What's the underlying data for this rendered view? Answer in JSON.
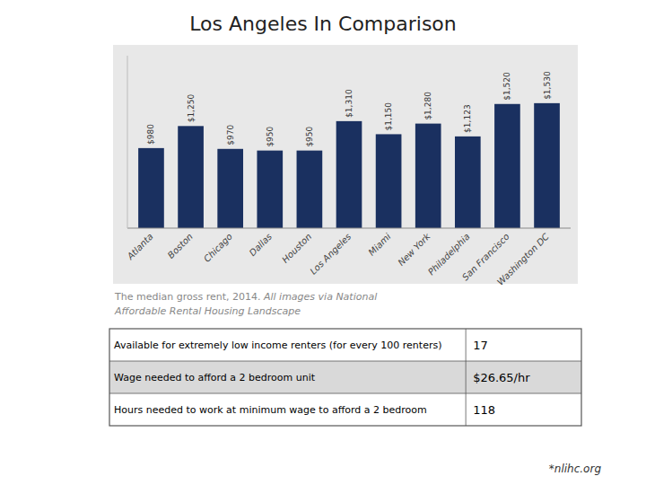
{
  "chart_data": {
    "type": "bar",
    "title": "Los Angeles In Comparison",
    "categories": [
      "Atlanta",
      "Boston",
      "Chicago",
      "Dallas",
      "Houston",
      "Los Angeles",
      "Miami",
      "New York",
      "Philadelphia",
      "San Francisco",
      "Washington DC"
    ],
    "values": [
      980,
      1250,
      970,
      950,
      950,
      1310,
      1150,
      1280,
      1123,
      1520,
      1530
    ],
    "value_labels": [
      "$980",
      "$1,250",
      "$970",
      "$950",
      "$950",
      "$1,310",
      "$1,150",
      "$1,280",
      "$1,123",
      "$1,520",
      "$1,530"
    ],
    "data_labels": true,
    "color": "#1a3060",
    "ylim": [
      0,
      2111.4
    ],
    "tick_labels": "x",
    "grid": false,
    "caption": [
      "The median gross rent, 2014.",
      "All images via National",
      "Affordable Rental Housing Landscape"
    ],
    "table": {
      "rows": [
        {
          "label": "Available for extremely low income renters (for every 100 renters)",
          "value": "17"
        },
        {
          "label": "Wage needed to afford a 2 bedroom unit",
          "value": "$26.65/hr"
        },
        {
          "label": "Hours needed to work at minimum wage to afford a 2 bedroom",
          "value": "118"
        }
      ]
    },
    "footer": "*nlihc.org"
  }
}
